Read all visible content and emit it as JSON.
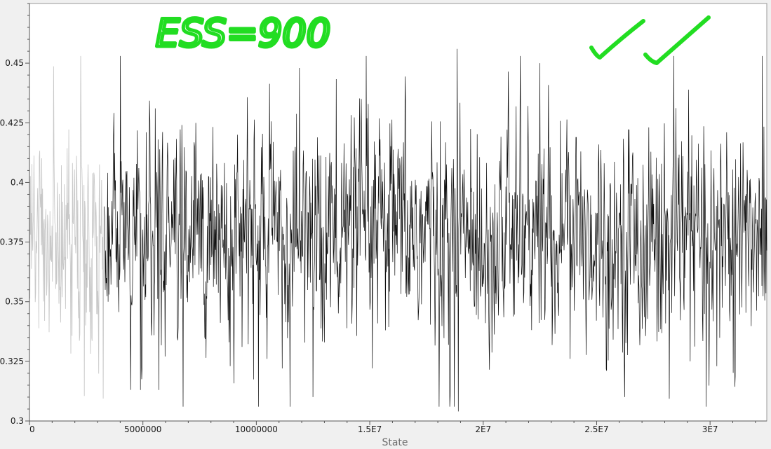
{
  "chart_data": {
    "type": "line",
    "title": "",
    "xlabel": "State",
    "ylabel": "",
    "xlim": [
      0,
      32500000
    ],
    "ylim": [
      0.3,
      0.475
    ],
    "x_ticks": [
      0,
      5000000,
      10000000,
      15000000,
      20000000,
      25000000,
      30000000
    ],
    "x_tick_labels": [
      "0",
      "5000000",
      "10000000",
      "1.5E7",
      "2E7",
      "2.5E7",
      "3E7"
    ],
    "y_ticks": [
      0.3,
      0.325,
      0.35,
      0.375,
      0.4,
      0.425,
      0.45
    ],
    "y_tick_labels": [
      "0.3",
      "0.325",
      "0.35",
      "0.375",
      "0.4",
      "0.425",
      "0.45"
    ],
    "grid": false,
    "burn_in_end": 3300000,
    "colors": {
      "trace": "#111111",
      "burn_in": "#c8c8c8",
      "annotation": "#22dd22",
      "plot_bg": "#ffffff",
      "page_bg": "#f0f0f0"
    },
    "trace_summary": {
      "n_samples": 1800,
      "mean": 0.378,
      "sd": 0.021,
      "min": 0.304,
      "max": 0.455
    },
    "notable_points": [
      {
        "x": 0,
        "y": 0.38
      },
      {
        "x": 4900000,
        "y": 0.313
      },
      {
        "x": 5700000,
        "y": 0.313
      },
      {
        "x": 10100000,
        "y": 0.306
      },
      {
        "x": 12500000,
        "y": 0.31
      },
      {
        "x": 11900000,
        "y": 0.448
      },
      {
        "x": 18900000,
        "y": 0.304
      },
      {
        "x": 18850000,
        "y": 0.456
      },
      {
        "x": 22500000,
        "y": 0.45
      },
      {
        "x": 30300000,
        "y": 0.323
      },
      {
        "x": 32300000,
        "y": 0.453
      }
    ],
    "annotations": [
      {
        "type": "text",
        "text": "ESS=900"
      },
      {
        "type": "checkmarks",
        "count": 2
      }
    ]
  }
}
